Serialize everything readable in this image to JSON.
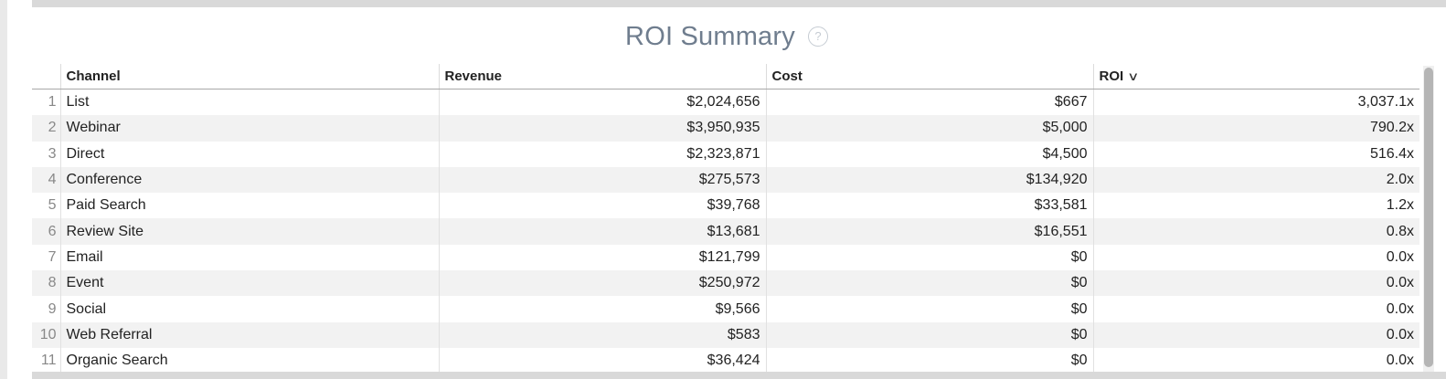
{
  "widget": {
    "title": "ROI Summary",
    "help_icon": "question-circle-icon"
  },
  "table": {
    "headers": {
      "channel": "Channel",
      "revenue": "Revenue",
      "cost": "Cost",
      "roi": "ROI"
    },
    "sort": {
      "column": "ROI",
      "direction": "descending",
      "icon": "chevron-down-icon"
    },
    "rows": [
      {
        "index": "1",
        "channel": "List",
        "revenue": "$2,024,656",
        "cost": "$667",
        "roi": "3,037.1x"
      },
      {
        "index": "2",
        "channel": "Webinar",
        "revenue": "$3,950,935",
        "cost": "$5,000",
        "roi": "790.2x"
      },
      {
        "index": "3",
        "channel": "Direct",
        "revenue": "$2,323,871",
        "cost": "$4,500",
        "roi": "516.4x"
      },
      {
        "index": "4",
        "channel": "Conference",
        "revenue": "$275,573",
        "cost": "$134,920",
        "roi": "2.0x"
      },
      {
        "index": "5",
        "channel": "Paid Search",
        "revenue": "$39,768",
        "cost": "$33,581",
        "roi": "1.2x"
      },
      {
        "index": "6",
        "channel": "Review Site",
        "revenue": "$13,681",
        "cost": "$16,551",
        "roi": "0.8x"
      },
      {
        "index": "7",
        "channel": "Email",
        "revenue": "$121,799",
        "cost": "$0",
        "roi": "0.0x"
      },
      {
        "index": "8",
        "channel": "Event",
        "revenue": "$250,972",
        "cost": "$0",
        "roi": "0.0x"
      },
      {
        "index": "9",
        "channel": "Social",
        "revenue": "$9,566",
        "cost": "$0",
        "roi": "0.0x"
      },
      {
        "index": "10",
        "channel": "Web Referral",
        "revenue": "$583",
        "cost": "$0",
        "roi": "0.0x"
      },
      {
        "index": "11",
        "channel": "Organic Search",
        "revenue": "$36,424",
        "cost": "$0",
        "roi": "0.0x"
      }
    ]
  }
}
